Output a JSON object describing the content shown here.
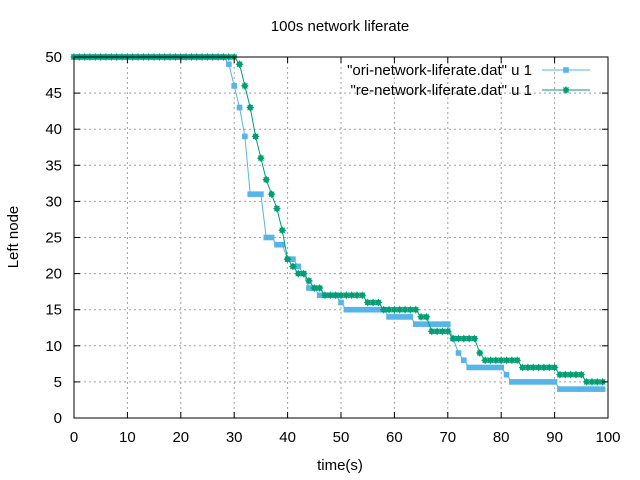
{
  "chart_data": {
    "type": "line",
    "title": "100s network liferate",
    "xlabel": "time(s)",
    "ylabel": "Left node",
    "xlim": [
      0,
      100
    ],
    "ylim": [
      0,
      50
    ],
    "xticks": [
      0,
      10,
      20,
      30,
      40,
      50,
      60,
      70,
      80,
      90,
      100
    ],
    "yticks": [
      0,
      5,
      10,
      15,
      20,
      25,
      30,
      35,
      40,
      45,
      50
    ],
    "grid": true,
    "legend_position": "top-right",
    "series": [
      {
        "name": "\"ori-network-liferate.dat\" u 1",
        "color": "#56b4e9",
        "marker": "square",
        "x": [
          0,
          1,
          2,
          3,
          4,
          5,
          6,
          7,
          8,
          9,
          10,
          11,
          12,
          13,
          14,
          15,
          16,
          17,
          18,
          19,
          20,
          21,
          22,
          23,
          24,
          25,
          26,
          27,
          28,
          29,
          30,
          31,
          32,
          33,
          34,
          35,
          36,
          37,
          38,
          39,
          40,
          41,
          42,
          43,
          44,
          45,
          46,
          47,
          48,
          49,
          50,
          51,
          52,
          53,
          54,
          55,
          56,
          57,
          58,
          59,
          60,
          61,
          62,
          63,
          64,
          65,
          66,
          67,
          68,
          69,
          70,
          71,
          72,
          73,
          74,
          75,
          76,
          77,
          78,
          79,
          80,
          81,
          82,
          83,
          84,
          85,
          86,
          87,
          88,
          89,
          90,
          91,
          92,
          93,
          94,
          95,
          96,
          97,
          98,
          99
        ],
        "y": [
          50,
          50,
          50,
          50,
          50,
          50,
          50,
          50,
          50,
          50,
          50,
          50,
          50,
          50,
          50,
          50,
          50,
          50,
          50,
          50,
          50,
          50,
          50,
          50,
          50,
          50,
          50,
          50,
          50,
          49,
          46,
          43,
          39,
          31,
          31,
          31,
          25,
          25,
          24,
          24,
          22,
          22,
          21,
          20,
          18,
          18,
          17,
          17,
          17,
          17,
          16,
          15,
          15,
          15,
          15,
          15,
          15,
          15,
          15,
          14,
          14,
          14,
          14,
          14,
          13,
          13,
          13,
          13,
          13,
          13,
          13,
          11,
          9,
          8,
          7,
          7,
          7,
          7,
          7,
          7,
          7,
          6,
          5,
          5,
          5,
          5,
          5,
          5,
          5,
          5,
          5,
          4,
          4,
          4,
          4,
          4,
          4,
          4,
          4,
          4
        ]
      },
      {
        "name": "\"re-network-liferate.dat\" u 1",
        "color": "#009e73",
        "marker": "star",
        "x": [
          0,
          1,
          2,
          3,
          4,
          5,
          6,
          7,
          8,
          9,
          10,
          11,
          12,
          13,
          14,
          15,
          16,
          17,
          18,
          19,
          20,
          21,
          22,
          23,
          24,
          25,
          26,
          27,
          28,
          29,
          30,
          31,
          32,
          33,
          34,
          35,
          36,
          37,
          38,
          39,
          40,
          41,
          42,
          43,
          44,
          45,
          46,
          47,
          48,
          49,
          50,
          51,
          52,
          53,
          54,
          55,
          56,
          57,
          58,
          59,
          60,
          61,
          62,
          63,
          64,
          65,
          66,
          67,
          68,
          69,
          70,
          71,
          72,
          73,
          74,
          75,
          76,
          77,
          78,
          79,
          80,
          81,
          82,
          83,
          84,
          85,
          86,
          87,
          88,
          89,
          90,
          91,
          92,
          93,
          94,
          95,
          96,
          97,
          98,
          99
        ],
        "y": [
          50,
          50,
          50,
          50,
          50,
          50,
          50,
          50,
          50,
          50,
          50,
          50,
          50,
          50,
          50,
          50,
          50,
          50,
          50,
          50,
          50,
          50,
          50,
          50,
          50,
          50,
          50,
          50,
          50,
          50,
          50,
          49,
          46,
          43,
          39,
          36,
          33,
          31,
          29,
          26,
          22,
          21,
          20,
          20,
          19,
          18,
          18,
          17,
          17,
          17,
          17,
          17,
          17,
          17,
          17,
          16,
          16,
          16,
          15,
          15,
          15,
          15,
          15,
          15,
          15,
          14,
          14,
          12,
          12,
          12,
          12,
          11,
          11,
          11,
          11,
          11,
          9,
          8,
          8,
          8,
          8,
          8,
          8,
          8,
          7,
          7,
          7,
          7,
          7,
          7,
          7,
          6,
          6,
          6,
          6,
          6,
          5,
          5,
          5,
          5
        ]
      }
    ]
  }
}
